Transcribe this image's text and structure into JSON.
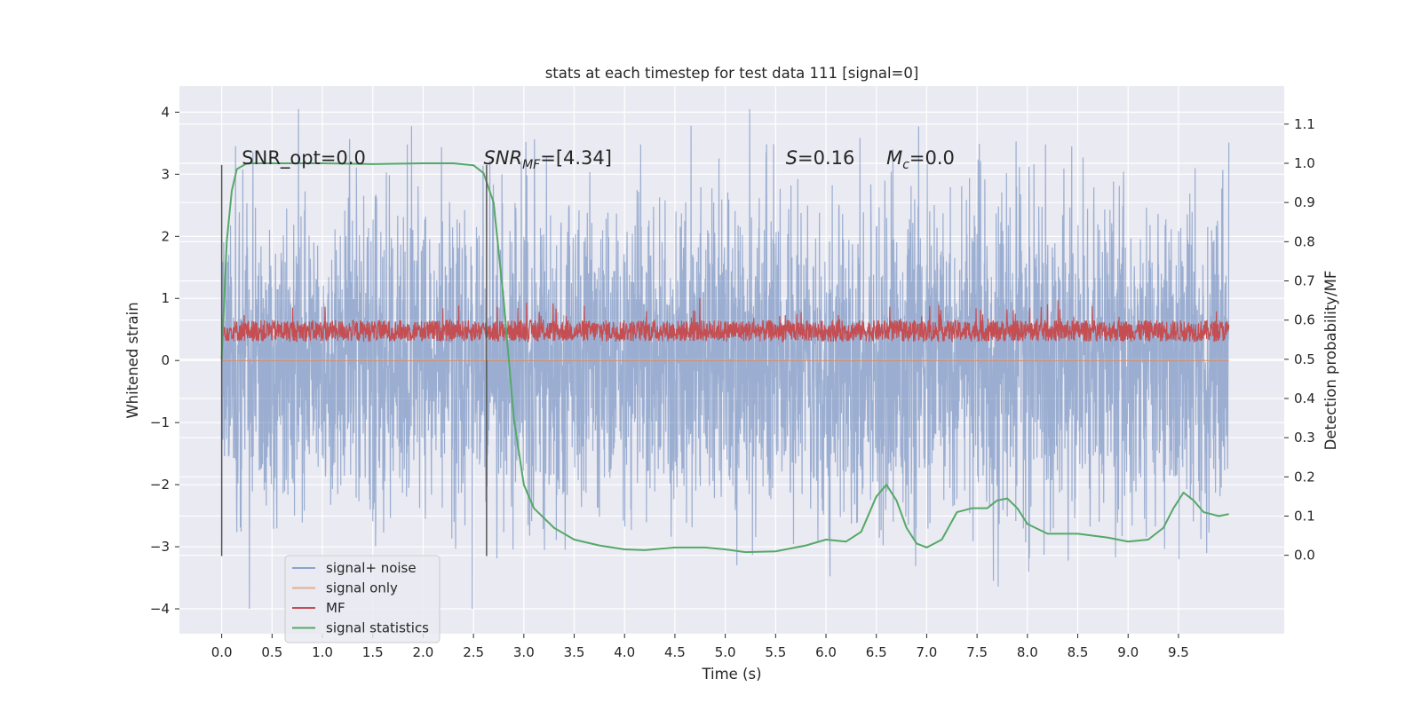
{
  "chart_data": {
    "type": "line",
    "title": "stats at each timestep for test data 111 [signal=0]",
    "xlabel": "Time (s)",
    "ylabel": "Whitened strain",
    "y2label": "Detection probability/MF",
    "xlim": [
      -0.42,
      10.55
    ],
    "ylim": [
      -4.4,
      4.42
    ],
    "y2lim": [
      -0.2,
      1.197
    ],
    "x_ticks": [
      0.0,
      0.5,
      1.0,
      1.5,
      2.0,
      2.5,
      3.0,
      3.5,
      4.0,
      4.5,
      5.0,
      5.5,
      6.0,
      6.5,
      7.0,
      7.5,
      8.0,
      8.5,
      9.0,
      9.5
    ],
    "x_tick_labels": [
      "0.0",
      "0.5",
      "1.0",
      "1.5",
      "2.0",
      "2.5",
      "3.0",
      "3.5",
      "4.0",
      "4.5",
      "5.0",
      "5.5",
      "6.0",
      "6.5",
      "7.0",
      "7.5",
      "8.0",
      "8.5",
      "9.0",
      "9.5"
    ],
    "y_ticks": [
      -4,
      -3,
      -2,
      -1,
      0,
      1,
      2,
      3,
      4
    ],
    "y_tick_labels": [
      "−4",
      "−3",
      "−2",
      "−1",
      "0",
      "1",
      "2",
      "3",
      "4"
    ],
    "y2_ticks": [
      0.0,
      0.1,
      0.2,
      0.3,
      0.4,
      0.5,
      0.6,
      0.7,
      0.8,
      0.9,
      1.0,
      1.1
    ],
    "y2_tick_labels": [
      "0.0",
      "0.1",
      "0.2",
      "0.3",
      "0.4",
      "0.5",
      "0.6",
      "0.7",
      "0.8",
      "0.9",
      "1.0",
      "1.1"
    ],
    "grid": true,
    "legend_position": "lower-left",
    "series": [
      {
        "name": "signal+ noise",
        "color": "#4c72b0",
        "axis": "left",
        "note_on_values": "dense noisy whitened strain trace from t=0 to t=10 s, roughly within ±3 with spikes to about ±4",
        "t_start": 0.0,
        "t_end": 10.0,
        "approx_range": [
          -4.0,
          4.05
        ]
      },
      {
        "name": "signal only",
        "color": "#dd8452",
        "axis": "left",
        "values_note": "zero everywhere (signal=0)",
        "x": [
          0.0,
          10.0
        ],
        "y": [
          0.0,
          0.0
        ]
      },
      {
        "name": "MF",
        "color": "#c44e52",
        "axis": "right",
        "note_on_values": "matched-filter output fluctuating between about 0.5 and 0.6 from t=0 to t=10 s",
        "t_start": 0.0,
        "t_end": 10.0,
        "approx_range": [
          0.5,
          0.66
        ]
      },
      {
        "name": "signal statistics",
        "color": "#55a868",
        "axis": "right",
        "x": [
          0.0,
          0.05,
          0.1,
          0.15,
          0.25,
          0.5,
          1.0,
          1.5,
          2.0,
          2.3,
          2.5,
          2.6,
          2.7,
          2.8,
          2.9,
          3.0,
          3.1,
          3.3,
          3.5,
          3.75,
          4.0,
          4.2,
          4.5,
          4.8,
          5.0,
          5.2,
          5.5,
          5.8,
          6.0,
          6.2,
          6.35,
          6.5,
          6.6,
          6.7,
          6.8,
          6.9,
          7.0,
          7.15,
          7.3,
          7.45,
          7.6,
          7.7,
          7.8,
          7.9,
          8.0,
          8.2,
          8.5,
          8.8,
          9.0,
          9.2,
          9.35,
          9.45,
          9.55,
          9.65,
          9.75,
          9.9,
          10.0
        ],
        "y": [
          0.5,
          0.8,
          0.93,
          0.985,
          1.0,
          1.0,
          1.0,
          0.998,
          1.0,
          1.0,
          0.995,
          0.975,
          0.9,
          0.65,
          0.35,
          0.18,
          0.12,
          0.07,
          0.04,
          0.025,
          0.015,
          0.013,
          0.02,
          0.02,
          0.015,
          0.008,
          0.01,
          0.025,
          0.04,
          0.035,
          0.06,
          0.15,
          0.18,
          0.14,
          0.07,
          0.03,
          0.02,
          0.04,
          0.11,
          0.12,
          0.12,
          0.14,
          0.145,
          0.12,
          0.08,
          0.055,
          0.055,
          0.045,
          0.035,
          0.04,
          0.07,
          0.12,
          0.16,
          0.14,
          0.11,
          0.1,
          0.105
        ]
      }
    ],
    "vertical_lines": [
      {
        "x": 0.0,
        "color": "#555555"
      },
      {
        "x": 2.63,
        "color": "#555555"
      }
    ],
    "annotations": [
      {
        "x": 0.2,
        "text": "SNR_opt=0.0"
      },
      {
        "x": 2.6,
        "text_main": "SNR",
        "text_sub": "MF",
        "text_rest": "=[4.34]"
      },
      {
        "x": 5.6,
        "text_main": "S",
        "text_rest": "=0.16"
      },
      {
        "x": 6.6,
        "text_main": "M",
        "text_sub": "c",
        "text_rest": "=0.0"
      }
    ]
  },
  "style": {
    "plot_background": "#eaeaf2",
    "grid_color": "#ffffff",
    "text_color": "#262626",
    "legend_background": "#eaeaf2",
    "legend_border": "#cccccc"
  }
}
